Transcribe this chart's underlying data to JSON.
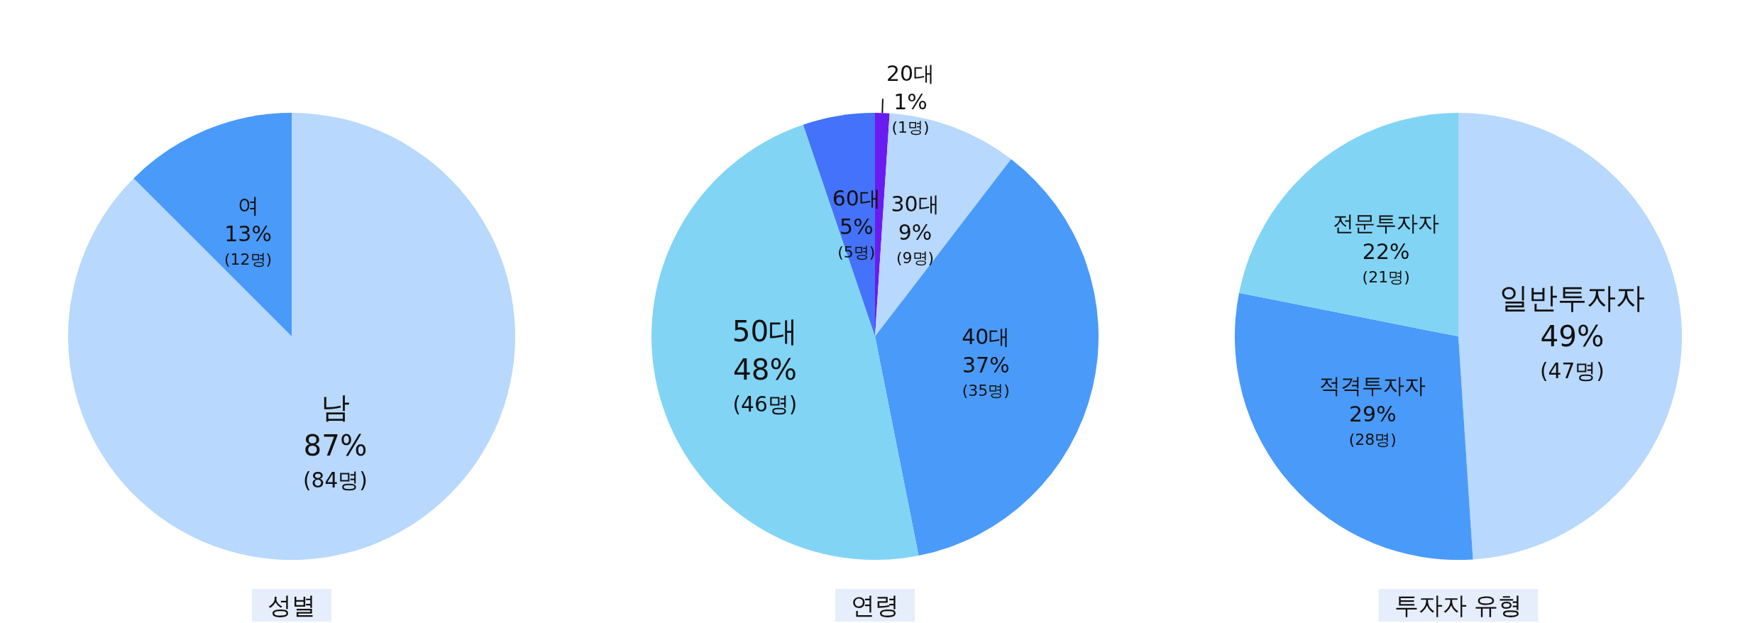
{
  "chart_data": [
    {
      "type": "pie",
      "title": "성별",
      "categories": [
        "남",
        "여"
      ],
      "values": [
        84,
        12
      ],
      "colors": [
        "#b8d8fd",
        "#4a9afa"
      ],
      "value_labels": [
        "87%\n(84명)",
        "13%\n(12명)"
      ]
    },
    {
      "type": "pie",
      "title": "연령",
      "categories": [
        "20대",
        "30대",
        "40대",
        "50대",
        "60대"
      ],
      "values": [
        1,
        9,
        35,
        46,
        5
      ],
      "colors": [
        "#6a1cf0",
        "#b8d8fd",
        "#4a9afa",
        "#82d4f5",
        "#4472fa"
      ],
      "value_labels": [
        "1%\n(1명)",
        "9%\n(9명)",
        "37%\n(35명)",
        "48%\n(46명)",
        "5%\n(5명)"
      ]
    },
    {
      "type": "pie",
      "title": "투자자 유형",
      "categories": [
        "일반투자자",
        "적격투자자",
        "전문투자자"
      ],
      "values": [
        47,
        28,
        21
      ],
      "colors": [
        "#b8d8fd",
        "#4a9afa",
        "#82d4f5"
      ],
      "value_labels": [
        "49%\n(47명)",
        "29%\n(28명)",
        "22%\n(21명)"
      ]
    }
  ]
}
